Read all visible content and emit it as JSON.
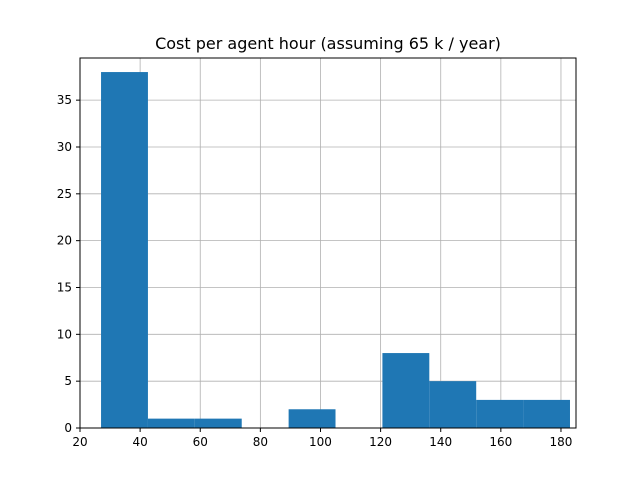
{
  "chart_data": {
    "type": "histogram",
    "title": "Cost per agent hour (assuming 65 k / year)",
    "xlabel": "",
    "ylabel": "",
    "xlim": [
      20,
      185
    ],
    "ylim": [
      0,
      39.5
    ],
    "x_ticks": [
      20,
      40,
      60,
      80,
      100,
      120,
      140,
      160,
      180
    ],
    "y_ticks": [
      0,
      5,
      10,
      15,
      20,
      25,
      30,
      35
    ],
    "grid": true,
    "bar_color": "#1f77b4",
    "bins": [
      {
        "x0": 27.0,
        "x1": 42.6,
        "count": 38
      },
      {
        "x0": 42.6,
        "x1": 58.2,
        "count": 1
      },
      {
        "x0": 58.2,
        "x1": 73.8,
        "count": 1
      },
      {
        "x0": 73.8,
        "x1": 89.4,
        "count": 0
      },
      {
        "x0": 89.4,
        "x1": 105.0,
        "count": 2
      },
      {
        "x0": 105.0,
        "x1": 120.6,
        "count": 0
      },
      {
        "x0": 120.6,
        "x1": 136.2,
        "count": 8
      },
      {
        "x0": 136.2,
        "x1": 151.8,
        "count": 5
      },
      {
        "x0": 151.8,
        "x1": 167.4,
        "count": 3
      },
      {
        "x0": 167.4,
        "x1": 183.0,
        "count": 3
      }
    ]
  }
}
